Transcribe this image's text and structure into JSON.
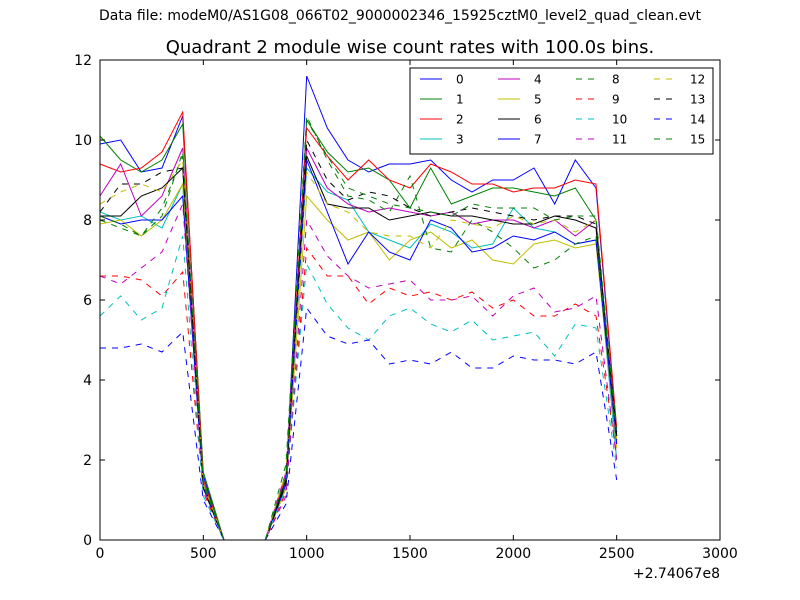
{
  "header": {
    "suptitle": "Data file: modeM0/AS1G08_066T02_9000002346_15925cztM0_level2_quad_clean.evt"
  },
  "chart_data": {
    "type": "line",
    "title": "Quadrant 2 module wise count rates with 100.0s bins.",
    "xlabel": "",
    "ylabel": "",
    "xlim": [
      0,
      3000
    ],
    "ylim": [
      0,
      12
    ],
    "xticks": [
      "0",
      "500",
      "1000",
      "1500",
      "2000",
      "2500",
      "3000"
    ],
    "yticks": [
      "0",
      "2",
      "4",
      "6",
      "8",
      "10",
      "12"
    ],
    "x_offset_label": "+2.74067e8",
    "grid": false,
    "legend_position": "top-right",
    "x": [
      0,
      100,
      200,
      300,
      400,
      500,
      600,
      700,
      800,
      900,
      1000,
      1100,
      1200,
      1300,
      1400,
      1500,
      1600,
      1700,
      1800,
      1900,
      2000,
      2100,
      2200,
      2300,
      2400,
      2500
    ],
    "series": [
      {
        "name": "0",
        "color": "#0000ff",
        "dash": "solid",
        "values": [
          9.9,
          10.0,
          9.2,
          9.3,
          10.6,
          1.6,
          0,
          0,
          0,
          1.5,
          11.6,
          10.3,
          9.5,
          9.2,
          9.4,
          9.4,
          9.5,
          9.0,
          8.7,
          9.0,
          9.0,
          9.3,
          8.4,
          9.5,
          8.8,
          2.7
        ]
      },
      {
        "name": "1",
        "color": "#008000",
        "dash": "solid",
        "values": [
          10.1,
          9.5,
          9.2,
          9.5,
          10.4,
          1.7,
          0,
          0,
          0,
          1.3,
          10.5,
          9.7,
          9.2,
          9.3,
          9.0,
          8.3,
          9.3,
          8.4,
          8.6,
          8.8,
          8.8,
          8.7,
          8.6,
          8.8,
          8.0,
          2.5
        ]
      },
      {
        "name": "2",
        "color": "#ff0000",
        "dash": "solid",
        "values": [
          9.4,
          9.2,
          9.3,
          9.7,
          10.7,
          1.5,
          0,
          0,
          0,
          1.6,
          10.3,
          9.6,
          9.0,
          9.5,
          9.0,
          8.8,
          9.4,
          9.2,
          8.9,
          8.9,
          8.7,
          8.8,
          8.8,
          9.0,
          8.9,
          2.8
        ]
      },
      {
        "name": "3",
        "color": "#00bfbf",
        "dash": "solid",
        "values": [
          8.2,
          8.0,
          8.1,
          7.8,
          8.9,
          1.4,
          0,
          0,
          0,
          1.5,
          9.3,
          8.7,
          8.5,
          7.7,
          7.5,
          7.3,
          7.9,
          7.7,
          7.3,
          7.4,
          8.3,
          7.8,
          7.7,
          7.4,
          7.5,
          2.0
        ]
      },
      {
        "name": "4",
        "color": "#bf00bf",
        "dash": "solid",
        "values": [
          8.6,
          9.4,
          8.1,
          8.6,
          9.8,
          1.3,
          0,
          0,
          0,
          1.7,
          9.8,
          8.8,
          8.4,
          8.2,
          8.3,
          8.2,
          8.1,
          8.2,
          7.9,
          8.0,
          8.0,
          7.8,
          8.0,
          7.6,
          8.0,
          2.4
        ]
      },
      {
        "name": "5",
        "color": "#bfbf00",
        "dash": "solid",
        "values": [
          7.9,
          8.0,
          7.6,
          8.0,
          8.9,
          1.4,
          0,
          0,
          0,
          1.3,
          8.6,
          8.0,
          7.5,
          7.7,
          7.0,
          7.5,
          7.7,
          7.3,
          7.5,
          7.0,
          6.9,
          7.4,
          7.5,
          7.3,
          7.4,
          2.3
        ]
      },
      {
        "name": "6",
        "color": "#000000",
        "dash": "solid",
        "values": [
          8.1,
          8.1,
          8.6,
          8.8,
          9.3,
          1.4,
          0,
          0,
          0,
          1.5,
          9.6,
          8.4,
          8.3,
          8.3,
          8.0,
          8.1,
          8.2,
          8.1,
          8.1,
          8.0,
          7.9,
          7.9,
          8.1,
          8.0,
          7.8,
          2.6
        ]
      },
      {
        "name": "7",
        "color": "#0000ff",
        "dash": "solid",
        "values": [
          8.1,
          7.9,
          8.0,
          8.0,
          8.6,
          1.3,
          0,
          0,
          0,
          1.4,
          9.5,
          8.2,
          6.9,
          7.7,
          7.2,
          7.0,
          8.0,
          7.8,
          7.2,
          7.3,
          7.6,
          7.5,
          7.7,
          7.4,
          7.5,
          2.4
        ]
      },
      {
        "name": "8",
        "color": "#008000",
        "dash": "dashed",
        "values": [
          8.0,
          7.8,
          7.6,
          8.3,
          9.6,
          1.5,
          0,
          0,
          0,
          1.9,
          10.6,
          9.5,
          8.6,
          8.5,
          8.2,
          9.1,
          7.3,
          7.2,
          8.0,
          7.7,
          7.3,
          6.8,
          7.0,
          7.4,
          7.6,
          2.8
        ]
      },
      {
        "name": "9",
        "color": "#ff0000",
        "dash": "dashed",
        "values": [
          6.6,
          6.6,
          6.5,
          6.1,
          6.7,
          1.2,
          0,
          0,
          0,
          1.2,
          7.3,
          6.6,
          6.6,
          5.9,
          6.3,
          6.1,
          6.2,
          6.0,
          6.2,
          5.8,
          6.0,
          5.6,
          5.6,
          5.9,
          5.6,
          2.1
        ]
      },
      {
        "name": "10",
        "color": "#00bfbf",
        "dash": "dashed",
        "values": [
          5.6,
          6.1,
          5.5,
          5.8,
          7.6,
          1.1,
          0,
          0,
          0,
          1.3,
          6.9,
          5.9,
          5.3,
          5.0,
          5.6,
          5.8,
          5.4,
          5.2,
          5.5,
          5.0,
          5.1,
          5.2,
          4.6,
          5.4,
          5.3,
          1.8
        ]
      },
      {
        "name": "11",
        "color": "#bf00bf",
        "dash": "dashed",
        "values": [
          6.6,
          6.4,
          6.8,
          7.2,
          8.4,
          1.3,
          0,
          0,
          0,
          1.1,
          8.0,
          7.1,
          6.6,
          6.3,
          6.4,
          6.5,
          6.0,
          6.0,
          6.1,
          5.6,
          6.1,
          6.3,
          5.7,
          5.8,
          6.1,
          2.0
        ]
      },
      {
        "name": "12",
        "color": "#bfbf00",
        "dash": "dashed",
        "values": [
          8.4,
          8.7,
          8.9,
          8.7,
          9.5,
          1.4,
          0,
          0,
          0,
          1.7,
          9.2,
          8.4,
          8.2,
          7.7,
          7.6,
          7.6,
          7.3,
          8.0,
          7.9,
          7.8,
          8.1,
          7.9,
          8.0,
          7.7,
          8.0,
          2.5
        ]
      },
      {
        "name": "13",
        "color": "#000000",
        "dash": "dashed",
        "values": [
          8.2,
          8.9,
          8.9,
          9.2,
          9.3,
          1.3,
          0,
          0,
          0,
          1.4,
          10.0,
          9.0,
          8.5,
          8.7,
          8.6,
          8.3,
          8.1,
          8.2,
          8.3,
          8.2,
          8.1,
          8.0,
          8.1,
          8.1,
          7.9,
          2.6
        ]
      },
      {
        "name": "14",
        "color": "#0000ff",
        "dash": "dashed",
        "values": [
          4.8,
          4.8,
          4.9,
          4.7,
          5.2,
          1.0,
          0,
          0,
          0,
          0.9,
          5.8,
          5.1,
          4.9,
          5.0,
          4.4,
          4.5,
          4.4,
          4.7,
          4.3,
          4.3,
          4.6,
          4.5,
          4.5,
          4.4,
          4.7,
          1.5
        ]
      },
      {
        "name": "15",
        "color": "#008000",
        "dash": "dashed",
        "values": [
          8.1,
          7.9,
          7.6,
          8.1,
          9.7,
          1.4,
          0,
          0,
          0,
          1.6,
          10.5,
          9.6,
          8.8,
          8.6,
          8.4,
          8.3,
          8.2,
          8.1,
          8.4,
          8.3,
          8.3,
          8.3,
          8.0,
          8.1,
          8.1,
          2.6
        ]
      }
    ]
  }
}
